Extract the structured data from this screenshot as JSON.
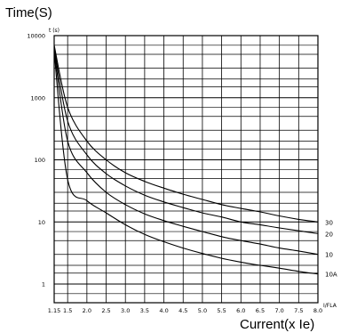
{
  "chart_data": {
    "type": "line",
    "y_axis_title": "Time(S)",
    "y_unit_label": "t (s)",
    "x_axis_title": "Current(x Ie)",
    "x_unit_label": "I/FLA",
    "x_scale": "linear",
    "y_scale": "log",
    "xlim": [
      1.15,
      8.0
    ],
    "ylim": [
      0.5,
      10000
    ],
    "grid": true,
    "x_ticks": [
      1.15,
      1.5,
      2.0,
      2.5,
      3.0,
      3.5,
      4.0,
      4.5,
      5.0,
      5.5,
      6.0,
      6.5,
      7.0,
      7.5,
      8.0
    ],
    "x_tick_labels": [
      "1.15",
      "1.5",
      "2.0",
      "2.5",
      "3.0",
      "3.5",
      "4.0",
      "4.5",
      "5.0",
      "5.5",
      "6.0",
      "6.5",
      "7.0",
      "7.5",
      "8.0"
    ],
    "y_ticks": [
      1,
      10,
      100,
      1000,
      10000
    ],
    "y_tick_labels": [
      "1",
      "10",
      "100",
      "1000",
      "10000"
    ],
    "series": [
      {
        "name": "30",
        "x": [
          1.15,
          1.5,
          2.0,
          2.5,
          3.0,
          3.5,
          4.0,
          4.5,
          5.0,
          5.5,
          6.0,
          6.5,
          7.0,
          7.5,
          8.0
        ],
        "y": [
          7000,
          700,
          200,
          100,
          62,
          45,
          35,
          28,
          23,
          19,
          16.5,
          14.5,
          12.5,
          11,
          10
        ]
      },
      {
        "name": "20",
        "x": [
          1.15,
          1.5,
          2.0,
          2.5,
          3.0,
          3.5,
          4.0,
          4.5,
          5.0,
          5.5,
          6.0,
          6.5,
          7.0,
          7.5,
          8.0
        ],
        "y": [
          6500,
          420,
          120,
          60,
          38,
          27,
          21,
          17,
          14,
          12,
          10,
          9,
          8,
          7.2,
          6.5
        ]
      },
      {
        "name": "10",
        "x": [
          1.15,
          1.5,
          2.0,
          2.5,
          3.0,
          3.5,
          4.0,
          4.5,
          5.0,
          5.5,
          6.0,
          6.5,
          7.0,
          7.5,
          8.0
        ],
        "y": [
          6000,
          200,
          62,
          30,
          19,
          13.5,
          10.5,
          8.5,
          7,
          5.8,
          5,
          4.4,
          3.8,
          3.4,
          3
        ]
      },
      {
        "name": "10A",
        "x": [
          1.15,
          1.5,
          2.0,
          2.5,
          3.0,
          3.5,
          4.0,
          4.5,
          5.0,
          5.5,
          6.0,
          6.5,
          7.0,
          7.5,
          8.0
        ],
        "y": [
          5500,
          48,
          22,
          14,
          9,
          6.3,
          4.8,
          3.8,
          3.1,
          2.6,
          2.25,
          2,
          1.8,
          1.6,
          1.45
        ]
      }
    ]
  }
}
